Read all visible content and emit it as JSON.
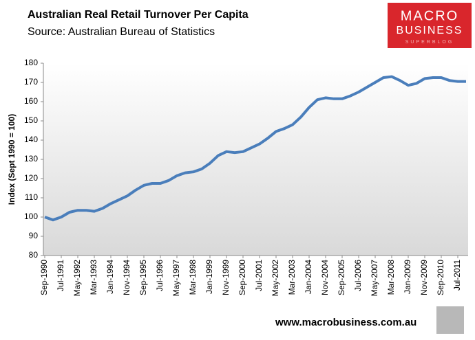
{
  "chart_data": {
    "type": "line",
    "title": "Australian Real Retail Turnover Per Capita",
    "subtitle": "Source: Australian Bureau of Statistics",
    "y_label": "Index (Sept 1990 = 100)",
    "footer": "www.macrobusiness.com.au",
    "logo": {
      "line1": "MACRO",
      "line2": "BUSINESS",
      "line3": "SUPERBLOG"
    },
    "color": "#4a7ebb",
    "ylim": [
      80,
      180
    ],
    "yticks": [
      80,
      90,
      100,
      110,
      120,
      130,
      140,
      150,
      160,
      170,
      180
    ],
    "categories": [
      "Sep-1990",
      null,
      "Jul-1991",
      null,
      "May-1992",
      null,
      "Mar-1993",
      null,
      "Jan-1994",
      null,
      "Nov-1994",
      null,
      "Sep-1995",
      null,
      "Jul-1996",
      null,
      "May-1997",
      null,
      "Mar-1998",
      null,
      "Jan-1999",
      null,
      "Nov-1999",
      null,
      "Sep-2000",
      null,
      "Jul-2001",
      null,
      "May-2002",
      null,
      "Mar-2003",
      null,
      "Jan-2004",
      null,
      "Nov-2004",
      null,
      "Sep-2005",
      null,
      "Jul-2006",
      null,
      "May-2007",
      null,
      "Mar-2008",
      null,
      "Jan-2009",
      null,
      "Nov-2009",
      null,
      "Sep-2010",
      null,
      "Jul-2011",
      null
    ],
    "values": [
      100,
      98.5,
      100,
      102.5,
      103.5,
      103.5,
      103,
      104.5,
      107,
      109,
      111,
      114,
      116.5,
      117.5,
      117.5,
      119,
      121.5,
      123,
      123.5,
      125,
      128,
      132,
      134,
      133.5,
      134,
      136,
      138,
      141,
      144.5,
      146,
      148,
      152,
      157,
      161,
      162,
      161.5,
      161.5,
      163,
      165,
      167.5,
      170,
      172.5,
      173,
      171,
      168.5,
      169.5,
      172,
      172.5,
      172.5,
      171,
      170.5,
      170.5
    ]
  }
}
